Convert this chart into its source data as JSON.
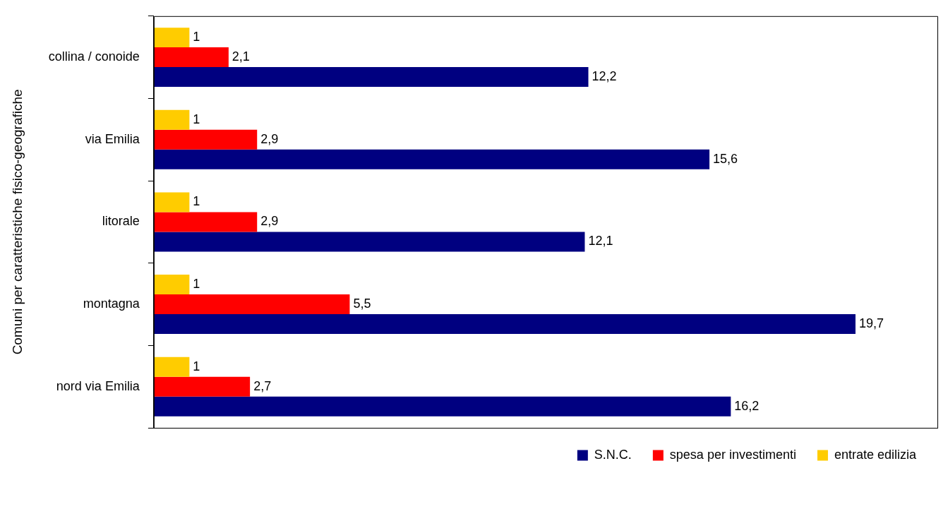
{
  "chart_data": {
    "type": "bar",
    "orientation": "horizontal",
    "ylabel": "Comuni per caratteristiche fisico-geografiche",
    "categories": [
      "collina / conoide",
      "via Emilia",
      "litorale",
      "montagna",
      "nord via Emilia"
    ],
    "series": [
      {
        "name": "entrate edilizia",
        "color": "#ffcc00",
        "values": [
          1,
          1,
          1,
          1,
          1
        ],
        "value_labels": [
          "1",
          "1",
          "1",
          "1",
          "1"
        ]
      },
      {
        "name": "spesa per investimenti",
        "color": "#ff0000",
        "values": [
          2.1,
          2.9,
          2.9,
          5.5,
          2.7
        ],
        "value_labels": [
          "2,1",
          "2,9",
          "2,9",
          "5,5",
          "2,7"
        ]
      },
      {
        "name": "S.N.C.",
        "color": "#000080",
        "values": [
          12.2,
          15.6,
          12.1,
          19.7,
          16.2
        ],
        "value_labels": [
          "12,2",
          "15,6",
          "12,1",
          "19,7",
          "16,2"
        ]
      }
    ],
    "xlim": [
      0,
      22
    ],
    "tick_labels": "y",
    "grid": false,
    "legend": "bottom right"
  }
}
